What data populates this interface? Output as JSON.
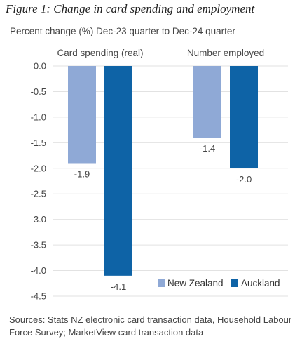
{
  "title": "Figure 1: Change in card spending and employment",
  "subtitle": "Percent change (%) Dec-23 quarter to Dec-24 quarter",
  "sources": "Sources: Stats NZ electronic card transaction data, Household Labour Force Survey; MarketView card transaction data",
  "colors": {
    "new_zealand": "#8fa9d6",
    "auckland": "#0e63a6",
    "grid": "#e2e2e2"
  },
  "chart_data": {
    "type": "bar",
    "title": "Figure 1: Change in card spending and employment",
    "subtitle": "Percent change (%) Dec-23 quarter to Dec-24 quarter",
    "categories": [
      "Card spending (real)",
      "Number employed"
    ],
    "series": [
      {
        "name": "New Zealand",
        "values": [
          -1.9,
          -1.4
        ],
        "labels": [
          "-1.9",
          "-1.4"
        ]
      },
      {
        "name": "Auckland",
        "values": [
          -4.1,
          -2.0
        ],
        "labels": [
          "-4.1",
          "-2.0"
        ]
      }
    ],
    "ylim": [
      -4.5,
      0.0
    ],
    "yticks": [
      0.0,
      -0.5,
      -1.0,
      -1.5,
      -2.0,
      -2.5,
      -3.0,
      -3.5,
      -4.0,
      -4.5
    ],
    "ytick_labels": [
      "0.0",
      "-0.5",
      "-1.0",
      "-1.5",
      "-2.0",
      "-2.5",
      "-3.0",
      "-3.5",
      "-4.0",
      "-4.5"
    ],
    "grid": true,
    "legend_position": "bottom-right"
  }
}
